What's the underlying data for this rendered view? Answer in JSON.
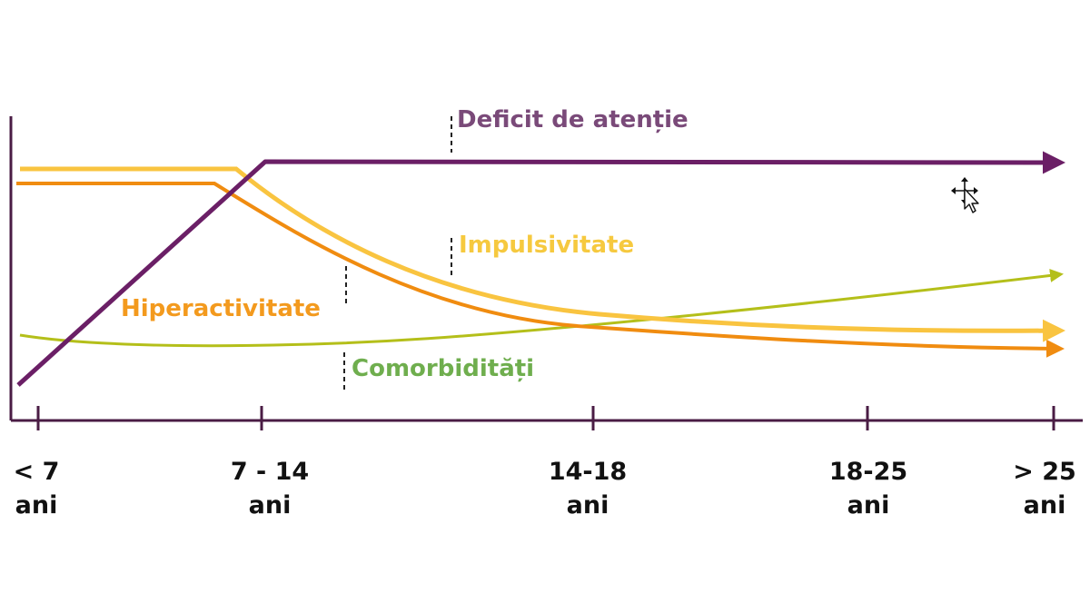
{
  "colors": {
    "axis": "#4a1c44",
    "deficit": "#6b1f66",
    "hiperactivitate": "#f08c10",
    "impulsivitate": "#f9c440",
    "comorbiditati": "#b4bf1a",
    "deficit_label": "#7a4a79",
    "hiperactivitate_label": "#f39a1e",
    "impulsivitate_label": "#f6c93f",
    "comorbiditati_label": "#6fae4e"
  },
  "x_axis": {
    "ticks": [
      {
        "line1": "< 7",
        "line2": "ani"
      },
      {
        "line1": "7 - 14",
        "line2": "ani"
      },
      {
        "line1": "14-18",
        "line2": "ani"
      },
      {
        "line1": "18-25",
        "line2": "ani"
      },
      {
        "line1": "> 25",
        "line2": "ani"
      }
    ]
  },
  "series": {
    "deficit": "Deficit de atenție",
    "impulsivitate": "Impulsivitate",
    "hiperactivitate": "Hiperactivitate",
    "comorbiditati": "Comorbidități"
  },
  "cursor_icon": "move-cursor-icon"
}
